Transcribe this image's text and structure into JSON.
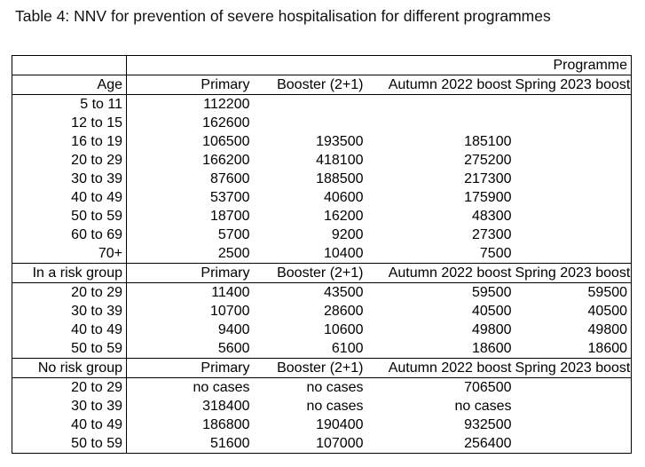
{
  "title": "Table 4: NNV for prevention of severe hospitalisation for different programmes",
  "table": {
    "programme_header": "Programme",
    "column_headers": [
      "Primary",
      "Booster (2+1)",
      "Autumn 2022 boost",
      "Spring 2023 boost"
    ],
    "sections": [
      {
        "label": "Age",
        "rows": [
          {
            "label": "5 to 11",
            "values": [
              "112200",
              "",
              "",
              ""
            ]
          },
          {
            "label": "12 to 15",
            "values": [
              "162600",
              "",
              "",
              ""
            ]
          },
          {
            "label": "16 to 19",
            "values": [
              "106500",
              "193500",
              "185100",
              ""
            ]
          },
          {
            "label": "20 to 29",
            "values": [
              "166200",
              "418100",
              "275200",
              ""
            ]
          },
          {
            "label": "30 to 39",
            "values": [
              "87600",
              "188500",
              "217300",
              ""
            ]
          },
          {
            "label": "40 to 49",
            "values": [
              "53700",
              "40600",
              "175900",
              ""
            ]
          },
          {
            "label": "50 to 59",
            "values": [
              "18700",
              "16200",
              "48300",
              ""
            ]
          },
          {
            "label": "60 to 69",
            "values": [
              "5700",
              "9200",
              "27300",
              ""
            ]
          },
          {
            "label": "70+",
            "values": [
              "2500",
              "10400",
              "7500",
              ""
            ]
          }
        ]
      },
      {
        "label": "In a risk group",
        "rows": [
          {
            "label": "20 to 29",
            "values": [
              "11400",
              "43500",
              "59500",
              "59500"
            ]
          },
          {
            "label": "30 to 39",
            "values": [
              "10700",
              "28600",
              "40500",
              "40500"
            ]
          },
          {
            "label": "40 to 49",
            "values": [
              "9400",
              "10600",
              "49800",
              "49800"
            ]
          },
          {
            "label": "50 to 59",
            "values": [
              "5600",
              "6100",
              "18600",
              "18600"
            ]
          }
        ]
      },
      {
        "label": "No risk group",
        "rows": [
          {
            "label": "20 to 29",
            "values": [
              "no cases",
              "no cases",
              "706500",
              ""
            ]
          },
          {
            "label": "30 to 39",
            "values": [
              "318400",
              "no cases",
              "no cases",
              ""
            ]
          },
          {
            "label": "40 to 49",
            "values": [
              "186800",
              "190400",
              "932500",
              ""
            ]
          },
          {
            "label": "50 to 59",
            "values": [
              "51600",
              "107000",
              "256400",
              ""
            ]
          }
        ]
      }
    ]
  }
}
